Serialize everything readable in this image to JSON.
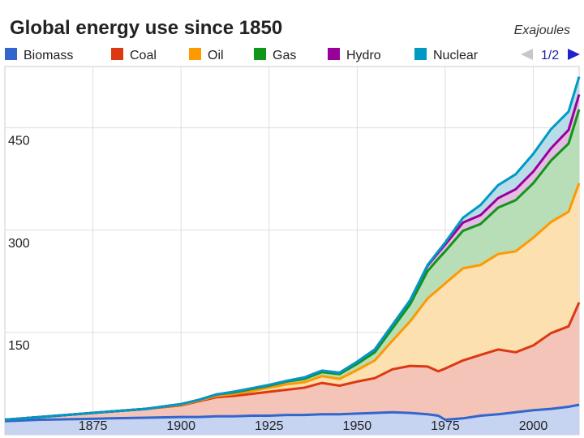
{
  "chart_data": {
    "type": "area",
    "stacked": true,
    "title": "Global energy use since 1850",
    "unit_label": "Exajoules",
    "legend_position": "top",
    "pager": "1/2",
    "grid": true,
    "xlim": [
      1850,
      2013
    ],
    "ylim": [
      0,
      540
    ],
    "y_ticks": [
      150,
      300,
      450
    ],
    "x_ticks": [
      1875,
      1900,
      1925,
      1950,
      1975,
      2000
    ],
    "x": [
      1850,
      1860,
      1870,
      1880,
      1890,
      1900,
      1905,
      1910,
      1915,
      1920,
      1925,
      1930,
      1935,
      1940,
      1945,
      1950,
      1955,
      1960,
      1965,
      1970,
      1973,
      1975,
      1980,
      1985,
      1990,
      1995,
      2000,
      2005,
      2010,
      2013
    ],
    "series": [
      {
        "name": "Biomass",
        "color": "#3366cc",
        "fill": "#c6d4f2",
        "values": [
          20,
          22,
          23,
          24,
          25,
          26,
          26,
          27,
          27,
          28,
          28,
          29,
          29,
          30,
          30,
          31,
          32,
          33,
          32,
          30,
          28,
          22,
          24,
          28,
          30,
          33,
          36,
          38,
          41,
          44
        ]
      },
      {
        "name": "Coal",
        "color": "#dc3912",
        "fill": "#f4c4b8",
        "values": [
          2,
          4,
          7,
          10,
          13,
          17,
          23,
          28,
          30,
          32,
          35,
          37,
          40,
          46,
          42,
          47,
          51,
          63,
          69,
          70,
          65,
          75,
          85,
          89,
          95,
          88,
          95,
          111,
          118,
          150
        ]
      },
      {
        "name": "Oil",
        "color": "#ff9900",
        "fill": "#fde0b0",
        "values": [
          0,
          0,
          0,
          0,
          0,
          1,
          1,
          2,
          3,
          4,
          6,
          8,
          8,
          10,
          10,
          17,
          26,
          42,
          65,
          100,
          120,
          125,
          135,
          132,
          140,
          148,
          158,
          163,
          168,
          175
        ]
      },
      {
        "name": "Gas",
        "color": "#109618",
        "fill": "#b8deb8",
        "values": [
          0,
          0,
          0,
          0,
          0,
          1,
          1,
          2,
          2,
          3,
          3,
          4,
          5,
          6,
          7,
          9,
          12,
          18,
          25,
          40,
          45,
          47,
          55,
          60,
          68,
          75,
          80,
          90,
          100,
          108
        ]
      },
      {
        "name": "Hydro",
        "color": "#990099",
        "fill": "#e4bce4",
        "values": [
          0,
          0,
          0,
          0,
          0,
          0,
          0,
          0,
          1,
          1,
          1,
          1,
          2,
          2,
          2,
          3,
          4,
          5,
          6,
          8,
          9,
          10,
          12,
          13,
          14,
          16,
          17,
          18,
          20,
          22
        ]
      },
      {
        "name": "Nuclear",
        "color": "#0099c6",
        "fill": "#b8dde8",
        "values": [
          0,
          0,
          0,
          0,
          0,
          0,
          0,
          0,
          0,
          0,
          0,
          0,
          0,
          0,
          0,
          0,
          0,
          0,
          0,
          1,
          2,
          3,
          7,
          15,
          19,
          22,
          26,
          28,
          27,
          26
        ]
      }
    ]
  }
}
